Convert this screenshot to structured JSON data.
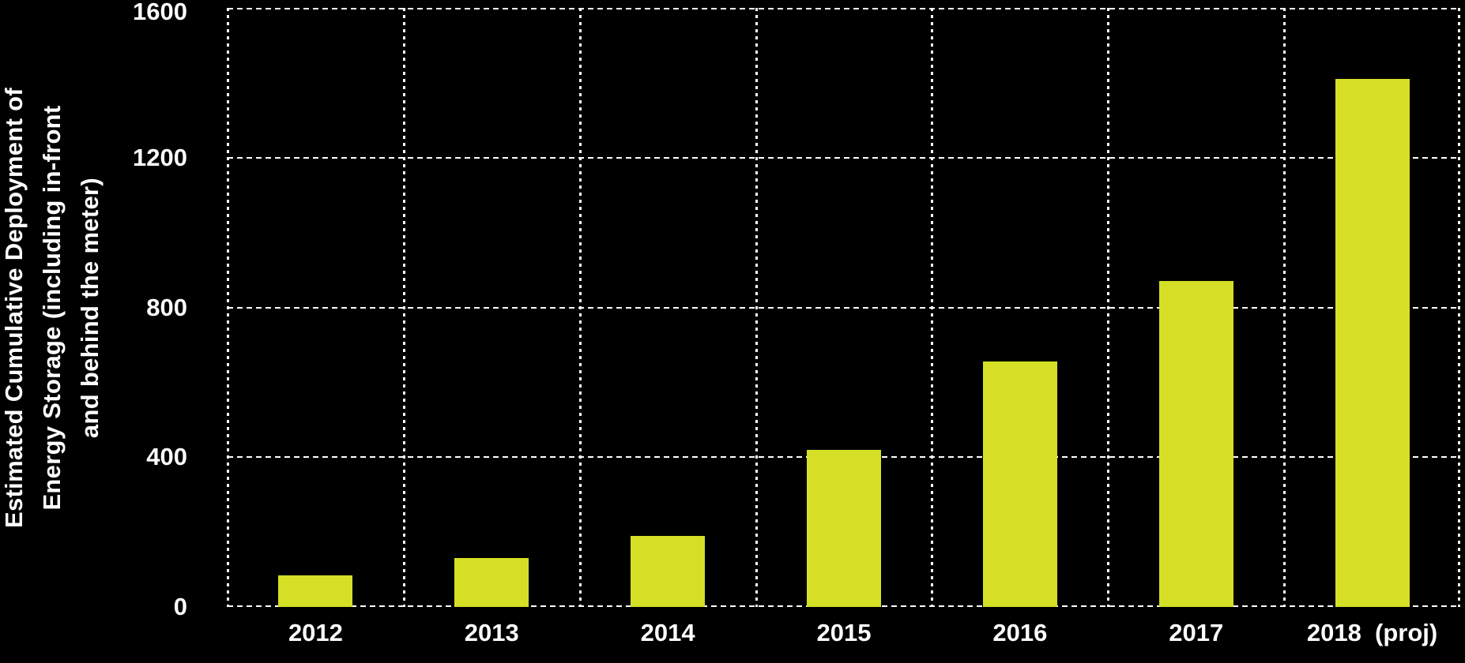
{
  "chart_data": {
    "type": "bar",
    "categories": [
      "2012",
      "2013",
      "2014",
      "2015",
      "2016",
      "2017",
      "2018  (proj)"
    ],
    "values": [
      85,
      130,
      190,
      420,
      655,
      870,
      1410
    ],
    "title": "",
    "xlabel": "",
    "ylabel": "Estimated Cumulative Deployment of Energy Storage (including in-front and behind the meter)",
    "ylabel_lines": "Estimated Cumulative Deployment of\nEnergy Storage (including in-front\nand behind the meter)",
    "yticks": [
      0,
      400,
      800,
      1200,
      1600
    ],
    "ylim": [
      0,
      1600
    ],
    "grid": "dotted white horizontal and vertical gridlines with full dotted border",
    "legend_position": "none",
    "colors": {
      "background": "#000000",
      "bar": "#d5df26",
      "text": "#ffffff",
      "grid": "#ffffff"
    }
  }
}
